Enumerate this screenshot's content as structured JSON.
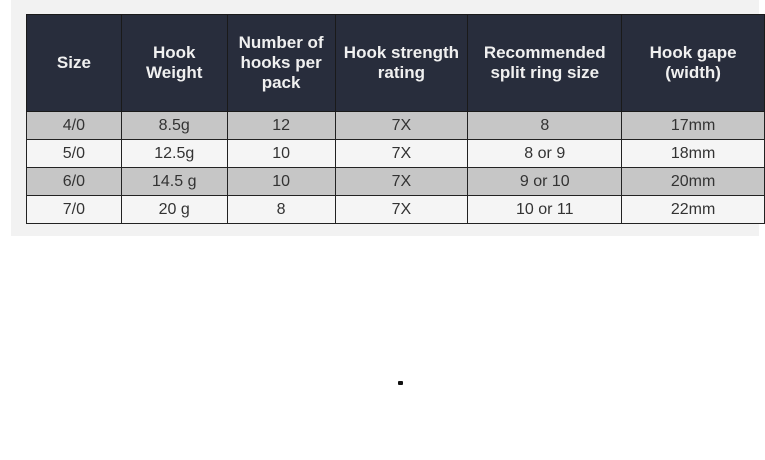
{
  "table": {
    "headers": [
      "Size",
      "Hook Weight",
      "Number of hooks per pack",
      "Hook strength rating",
      "Recommended split ring size",
      "Hook gape (width)"
    ],
    "rows": [
      [
        "4/0",
        "8.5g",
        "12",
        "7X",
        "8",
        "17mm"
      ],
      [
        "5/0",
        "12.5g",
        "10",
        "7X",
        "8 or 9",
        "18mm"
      ],
      [
        "6/0",
        "14.5 g",
        "10",
        "7X",
        "9 or 10",
        "20mm"
      ],
      [
        "7/0",
        "20 g",
        "8",
        "7X",
        "10 or 11",
        "22mm"
      ]
    ]
  },
  "colors": {
    "header_bg": "#282d3c",
    "row_shaded": "#c6c6c6",
    "row_light": "#f5f5f5"
  }
}
